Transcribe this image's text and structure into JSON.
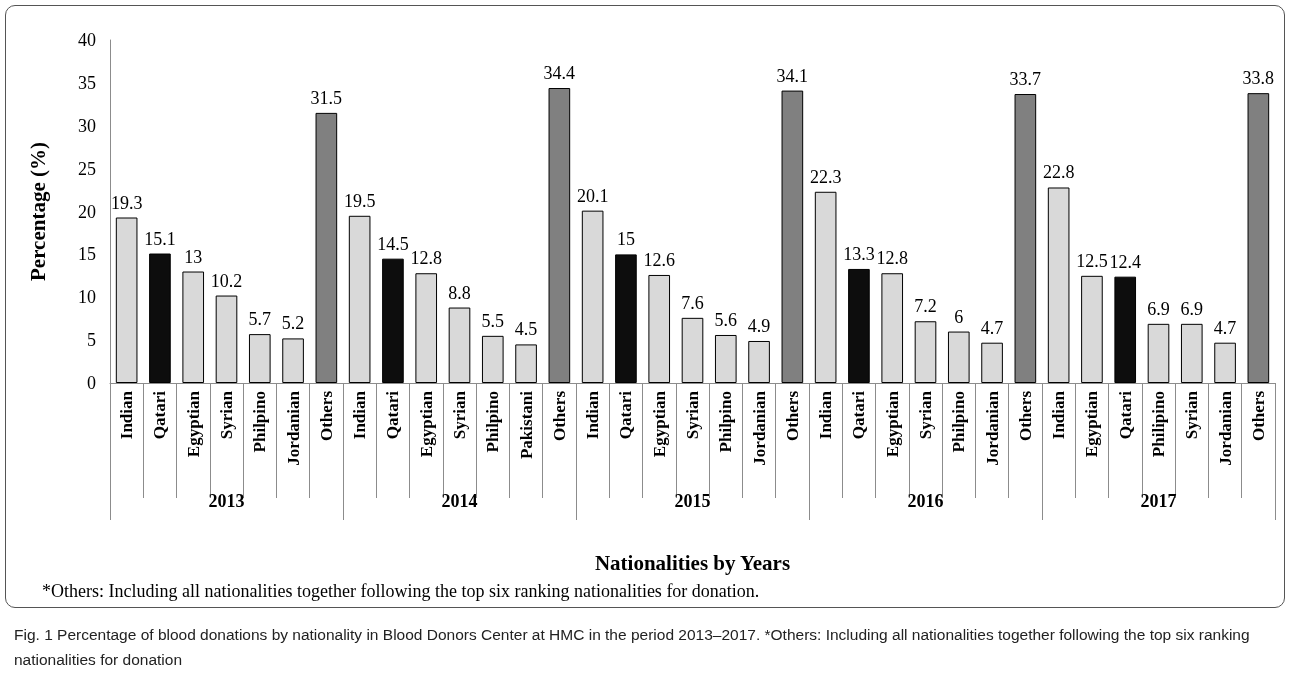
{
  "chart_data": {
    "type": "bar",
    "xlabel": "Nationalities by Years",
    "ylabel": "Percentage (%)",
    "categories": [
      "Indian",
      "Qatari",
      "Egyptian",
      "Syrian",
      "Philpino",
      "Jordanian",
      "Others",
      "Indian",
      "Qatari",
      "Egyptian",
      "Syrian",
      "Philpino",
      "Pakistani",
      "Others",
      "Indian",
      "Qatari",
      "Egyptian",
      "Syrian",
      "Philpino",
      "Jordanian",
      "Others",
      "Indian",
      "Qatari",
      "Egyptian",
      "Syrian",
      "Philpino",
      "Jordanian",
      "Others",
      "Indian",
      "Egyptian",
      "Qatari",
      "Philipino",
      "Syrian",
      "Jordanian",
      "Others"
    ],
    "values": [
      19.3,
      15.1,
      13,
      10.2,
      5.7,
      5.2,
      31.5,
      19.5,
      14.5,
      12.8,
      8.8,
      5.5,
      4.5,
      34.4,
      20.1,
      15,
      12.6,
      7.6,
      5.6,
      4.9,
      34.1,
      22.3,
      13.3,
      12.8,
      7.2,
      6,
      4.7,
      33.7,
      22.8,
      12.5,
      12.4,
      6.9,
      6.9,
      4.7,
      33.8
    ],
    "colors": [
      "#d9d9d9",
      "#0d0d0d",
      "#d9d9d9",
      "#d9d9d9",
      "#d9d9d9",
      "#d9d9d9",
      "#808080",
      "#d9d9d9",
      "#0d0d0d",
      "#d9d9d9",
      "#d9d9d9",
      "#d9d9d9",
      "#d9d9d9",
      "#808080",
      "#d9d9d9",
      "#0d0d0d",
      "#d9d9d9",
      "#d9d9d9",
      "#d9d9d9",
      "#d9d9d9",
      "#808080",
      "#d9d9d9",
      "#0d0d0d",
      "#d9d9d9",
      "#d9d9d9",
      "#d9d9d9",
      "#d9d9d9",
      "#808080",
      "#d9d9d9",
      "#d9d9d9",
      "#0d0d0d",
      "#d9d9d9",
      "#d9d9d9",
      "#d9d9d9",
      "#808080"
    ],
    "ylim": [
      0,
      40
    ],
    "yticks": [
      0,
      5,
      10,
      15,
      20,
      25,
      30,
      35,
      40
    ],
    "grid": false,
    "data_labels": true,
    "annotations": [
      "2013",
      "2014",
      "2015",
      "2016",
      "2017",
      "*Others: Including all nationalities together following the top six ranking nationalities for donation.",
      "Fig. 1 Percentage of blood donations by nationality in Blood Donors Center at HMC in the period 2013–2017. *Others: Including all nationalities together following the top six ranking nationalities for donation"
    ]
  }
}
